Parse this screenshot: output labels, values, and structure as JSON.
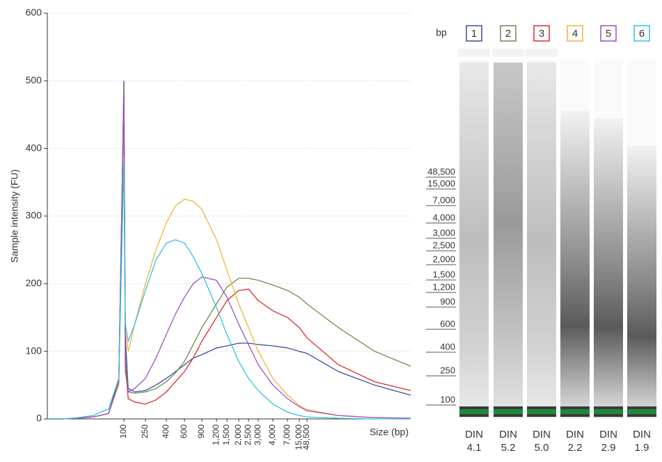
{
  "chart_data": {
    "type": "line",
    "x_label": "Size (bp)",
    "y_label": "Sample intensity (FU)",
    "xlim": [
      25,
      60000
    ],
    "ylim": [
      0,
      600
    ],
    "yticks": [
      0,
      100,
      200,
      300,
      400,
      500,
      600
    ],
    "xticks": [
      100,
      250,
      400,
      600,
      900,
      {
        "value": 1200,
        "label": "1,200"
      },
      {
        "value": 1500,
        "label": "1,500"
      },
      {
        "value": 2000,
        "label": "2,000"
      },
      {
        "value": 2500,
        "label": "2,500"
      },
      {
        "value": 3000,
        "label": "3,000"
      },
      {
        "value": 4000,
        "label": "4,000"
      },
      {
        "value": 7000,
        "label": "7,000"
      },
      {
        "value": 15000,
        "label": "15,000"
      },
      {
        "value": 48500,
        "label": "48,500"
      }
    ],
    "grid": true,
    "x": [
      25,
      40,
      55,
      70,
      85,
      95,
      100,
      105,
      110,
      130,
      175,
      250,
      325,
      400,
      500,
      600,
      750,
      900,
      1200,
      1500,
      2000,
      2500,
      3000,
      4000,
      7000,
      15000,
      48500,
      52000,
      56000,
      60000
    ],
    "series": [
      {
        "name": "1",
        "color": "#3b4aa0",
        "din": "4.1",
        "values": [
          0,
          0,
          1,
          3,
          8,
          60,
          500,
          300,
          120,
          45,
          40,
          42,
          50,
          60,
          70,
          80,
          90,
          95,
          105,
          108,
          112,
          112,
          110,
          108,
          105,
          100,
          97,
          70,
          50,
          35
        ]
      },
      {
        "name": "2",
        "color": "#6f8a48",
        "din": "5.2",
        "values": [
          0,
          0,
          1,
          3,
          8,
          55,
          490,
          300,
          100,
          40,
          38,
          40,
          45,
          55,
          68,
          85,
          110,
          135,
          170,
          195,
          208,
          208,
          205,
          198,
          190,
          180,
          170,
          135,
          100,
          78
        ]
      },
      {
        "name": "3",
        "color": "#e02828",
        "din": "5.0",
        "values": [
          0,
          0,
          1,
          3,
          8,
          55,
          480,
          300,
          80,
          30,
          25,
          22,
          28,
          40,
          55,
          70,
          90,
          115,
          150,
          175,
          190,
          192,
          175,
          160,
          150,
          135,
          120,
          80,
          55,
          42
        ]
      },
      {
        "name": "4",
        "color": "#f0b43a",
        "din": "2.2",
        "values": [
          0,
          0,
          1,
          3,
          8,
          50,
          470,
          300,
          130,
          100,
          140,
          200,
          250,
          290,
          315,
          325,
          322,
          310,
          265,
          220,
          170,
          135,
          100,
          60,
          35,
          20,
          14,
          5,
          2,
          1
        ]
      },
      {
        "name": "5",
        "color": "#9a50c0",
        "din": "2.9",
        "values": [
          0,
          0,
          1,
          3,
          8,
          55,
          480,
          300,
          70,
          40,
          45,
          60,
          90,
          125,
          155,
          180,
          200,
          210,
          205,
          180,
          140,
          110,
          80,
          50,
          30,
          18,
          12,
          5,
          2,
          1
        ]
      },
      {
        "name": "6",
        "color": "#33c0da",
        "din": "1.9",
        "values": [
          0,
          0,
          2,
          5,
          15,
          60,
          380,
          250,
          140,
          115,
          140,
          190,
          235,
          260,
          265,
          260,
          240,
          215,
          165,
          125,
          85,
          60,
          42,
          22,
          10,
          5,
          3,
          1,
          0,
          0
        ]
      }
    ],
    "gel": {
      "unit_label": "bp",
      "score_label": "DIN"
    }
  }
}
